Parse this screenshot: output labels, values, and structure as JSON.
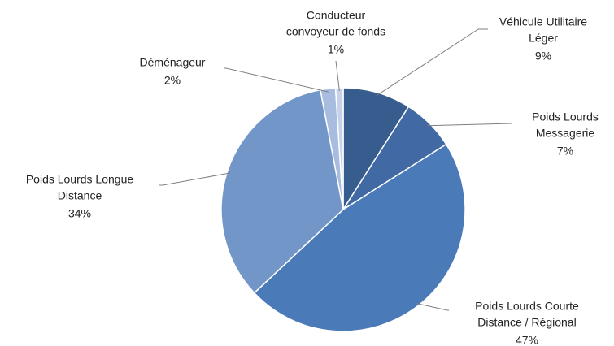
{
  "chart_data": {
    "type": "pie",
    "categories": [
      [
        "Véhicule Utilitaire",
        "Léger"
      ],
      [
        "Poids Lourds",
        "Messagerie"
      ],
      [
        "Poids Lourds Courte",
        "Distance / Régional"
      ],
      [
        "Poids Lourds Longue",
        "Distance"
      ],
      [
        "Déménageur"
      ],
      [
        "Conducteur",
        "convoyeur de fonds"
      ]
    ],
    "values": [
      9,
      7,
      47,
      34,
      2,
      1
    ],
    "value_labels": [
      "9%",
      "7%",
      "47%",
      "34%",
      "2%",
      "1%"
    ],
    "colors": [
      "#375d8e",
      "#4169a3",
      "#4a7ab8",
      "#7396c9",
      "#a8bcdf",
      "#c5d2ea"
    ]
  }
}
